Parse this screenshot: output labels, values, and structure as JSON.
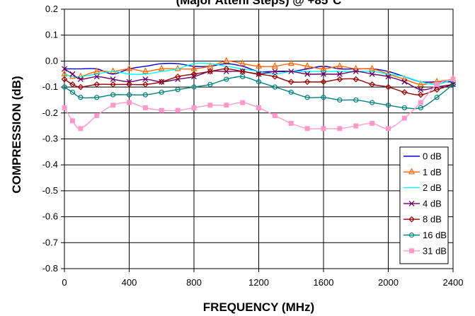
{
  "chart_data": {
    "type": "line",
    "title": "(Major Attenl Steps) @ +85°C",
    "xlabel": "FREQUENCY (MHz)",
    "ylabel": "COMPRESSION (dB)",
    "xlim": [
      0,
      2400
    ],
    "ylim": [
      -0.8,
      0.2
    ],
    "xticks": [
      0,
      400,
      800,
      1200,
      1600,
      2000,
      2400
    ],
    "yticks": [
      0.2,
      0.1,
      0.0,
      -0.1,
      -0.2,
      -0.3,
      -0.4,
      -0.5,
      -0.6,
      -0.7,
      -0.8
    ],
    "ytick_labels": [
      "0.2",
      "0.1",
      "0.0",
      "-0.1",
      "-0.2",
      "-0.3",
      "-0.4",
      "-0.5",
      "-0.6",
      "-0.7",
      "-0.8"
    ],
    "grid": true,
    "legend_position": "bottom-right",
    "x": [
      0,
      50,
      100,
      200,
      300,
      400,
      500,
      600,
      700,
      800,
      900,
      1000,
      1100,
      1200,
      1300,
      1400,
      1500,
      1600,
      1700,
      1800,
      1900,
      2000,
      2100,
      2200,
      2300,
      2400
    ],
    "series": [
      {
        "name": "0 dB",
        "color": "#0000cc",
        "marker": "none",
        "values": [
          -0.03,
          -0.03,
          -0.03,
          -0.03,
          -0.05,
          -0.03,
          -0.02,
          -0.01,
          -0.01,
          -0.02,
          -0.02,
          -0.01,
          -0.02,
          -0.04,
          -0.04,
          -0.04,
          -0.03,
          -0.02,
          -0.03,
          -0.03,
          -0.03,
          -0.04,
          -0.06,
          -0.08,
          -0.08,
          -0.08
        ]
      },
      {
        "name": "1 dB",
        "color": "#ff6600",
        "marker": "triangle",
        "values": [
          -0.05,
          -0.06,
          -0.06,
          -0.04,
          -0.04,
          -0.03,
          -0.04,
          -0.03,
          -0.03,
          -0.03,
          -0.02,
          0.0,
          -0.01,
          -0.02,
          -0.02,
          -0.01,
          -0.02,
          -0.03,
          -0.02,
          -0.03,
          -0.03,
          -0.05,
          -0.07,
          -0.09,
          -0.08,
          -0.07
        ]
      },
      {
        "name": "2 dB",
        "color": "#00ffff",
        "marker": "none",
        "values": [
          -0.05,
          -0.06,
          -0.06,
          -0.05,
          -0.04,
          -0.05,
          -0.05,
          -0.04,
          -0.03,
          -0.01,
          -0.01,
          -0.02,
          -0.03,
          -0.04,
          -0.05,
          -0.04,
          -0.04,
          -0.04,
          -0.04,
          -0.04,
          -0.04,
          -0.05,
          -0.06,
          -0.08,
          -0.09,
          -0.07
        ]
      },
      {
        "name": "4 dB",
        "color": "#660066",
        "marker": "x",
        "values": [
          -0.03,
          -0.05,
          -0.07,
          -0.06,
          -0.07,
          -0.08,
          -0.07,
          -0.08,
          -0.07,
          -0.06,
          -0.04,
          -0.04,
          -0.04,
          -0.05,
          -0.04,
          -0.04,
          -0.05,
          -0.05,
          -0.05,
          -0.04,
          -0.05,
          -0.06,
          -0.08,
          -0.11,
          -0.1,
          -0.09
        ]
      },
      {
        "name": "8 dB",
        "color": "#990000",
        "marker": "diamond",
        "values": [
          -0.07,
          -0.09,
          -0.1,
          -0.09,
          -0.09,
          -0.09,
          -0.09,
          -0.08,
          -0.06,
          -0.05,
          -0.04,
          -0.03,
          -0.04,
          -0.05,
          -0.06,
          -0.08,
          -0.08,
          -0.08,
          -0.07,
          -0.07,
          -0.09,
          -0.1,
          -0.12,
          -0.13,
          -0.11,
          -0.09
        ]
      },
      {
        "name": "16 dB",
        "color": "#008080",
        "marker": "circle",
        "values": [
          -0.1,
          -0.12,
          -0.14,
          -0.14,
          -0.13,
          -0.13,
          -0.13,
          -0.12,
          -0.11,
          -0.1,
          -0.09,
          -0.07,
          -0.06,
          -0.08,
          -0.1,
          -0.12,
          -0.14,
          -0.14,
          -0.15,
          -0.15,
          -0.16,
          -0.17,
          -0.18,
          -0.18,
          -0.14,
          -0.09
        ]
      },
      {
        "name": "31 dB",
        "color": "#ff99cc",
        "marker": "square",
        "values": [
          -0.18,
          -0.23,
          -0.26,
          -0.21,
          -0.17,
          -0.16,
          -0.18,
          -0.19,
          -0.19,
          -0.18,
          -0.17,
          -0.17,
          -0.16,
          -0.18,
          -0.21,
          -0.24,
          -0.26,
          -0.26,
          -0.26,
          -0.25,
          -0.24,
          -0.26,
          -0.22,
          -0.16,
          -0.09,
          -0.07
        ]
      }
    ]
  }
}
